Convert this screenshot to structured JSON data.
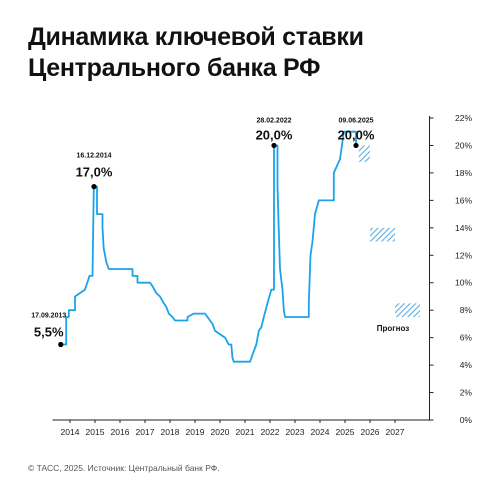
{
  "title_line1": "Динамика ключевой ставки",
  "title_line2": "Центрального банка РФ",
  "source": "© ТАСС, 2025. Источник: Центральный банк РФ.",
  "forecast_label": "Прогноз",
  "annotations": [
    {
      "date_label": "17.09.2013",
      "value_label": "5,5%",
      "x": 2013.71,
      "y": 5.5
    },
    {
      "date_label": "16.12.2014",
      "value_label": "17,0%",
      "x": 2014.96,
      "y": 17.0
    },
    {
      "date_label": "28.02.2022",
      "value_label": "20,0%",
      "x": 2022.16,
      "y": 20.0
    },
    {
      "date_label": "09.06.2025",
      "value_label": "20,0%",
      "x": 2025.44,
      "y": 20.0
    }
  ],
  "colors": {
    "line": "#1aa3e8",
    "forecast": "#5aaee0",
    "text": "#111111",
    "axis": "#222222"
  },
  "chart_data": {
    "type": "line",
    "title": "Динамика ключевой ставки Центрального банка РФ",
    "xlabel": "",
    "ylabel": "",
    "xlim": [
      2013.3,
      2028.3
    ],
    "ylim": [
      0,
      22
    ],
    "x_ticks": [
      "2014",
      "2015",
      "2016",
      "2017",
      "2018",
      "2019",
      "2020",
      "2021",
      "2022",
      "2023",
      "2024",
      "2025",
      "2026",
      "2027"
    ],
    "y_ticks": [
      "0%",
      "2%",
      "4%",
      "6%",
      "8%",
      "10%",
      "12%",
      "14%",
      "16%",
      "18%",
      "20%",
      "22%"
    ],
    "y_axis_position": "right",
    "grid": false,
    "series": [
      {
        "values": [
          [
            2013.71,
            5.5
          ],
          [
            2013.85,
            5.5
          ],
          [
            2013.85,
            7.5
          ],
          [
            2013.95,
            7.5
          ],
          [
            2013.95,
            8.0
          ],
          [
            2014.2,
            8.0
          ],
          [
            2014.2,
            9.0
          ],
          [
            2014.6,
            9.5
          ],
          [
            2014.78,
            10.5
          ],
          [
            2014.9,
            10.5
          ],
          [
            2014.95,
            17.0
          ],
          [
            2015.08,
            17.0
          ],
          [
            2015.08,
            15.0
          ],
          [
            2015.3,
            15.0
          ],
          [
            2015.3,
            14.0
          ],
          [
            2015.35,
            12.5
          ],
          [
            2015.45,
            11.5
          ],
          [
            2015.55,
            11.0
          ],
          [
            2016.5,
            11.0
          ],
          [
            2016.5,
            10.5
          ],
          [
            2016.7,
            10.5
          ],
          [
            2016.7,
            10.0
          ],
          [
            2017.2,
            10.0
          ],
          [
            2017.3,
            9.75
          ],
          [
            2017.45,
            9.25
          ],
          [
            2017.6,
            9.0
          ],
          [
            2017.75,
            8.5
          ],
          [
            2017.85,
            8.25
          ],
          [
            2017.95,
            7.75
          ],
          [
            2018.1,
            7.5
          ],
          [
            2018.2,
            7.25
          ],
          [
            2018.7,
            7.25
          ],
          [
            2018.7,
            7.5
          ],
          [
            2018.95,
            7.75
          ],
          [
            2019.4,
            7.75
          ],
          [
            2019.5,
            7.5
          ],
          [
            2019.6,
            7.25
          ],
          [
            2019.7,
            7.0
          ],
          [
            2019.8,
            6.5
          ],
          [
            2020.0,
            6.25
          ],
          [
            2020.2,
            6.0
          ],
          [
            2020.35,
            5.5
          ],
          [
            2020.45,
            5.5
          ],
          [
            2020.5,
            4.5
          ],
          [
            2020.55,
            4.25
          ],
          [
            2021.2,
            4.25
          ],
          [
            2021.25,
            4.5
          ],
          [
            2021.35,
            5.0
          ],
          [
            2021.45,
            5.5
          ],
          [
            2021.55,
            6.5
          ],
          [
            2021.65,
            6.75
          ],
          [
            2021.75,
            7.5
          ],
          [
            2021.9,
            8.5
          ],
          [
            2022.05,
            9.5
          ],
          [
            2022.16,
            9.5
          ],
          [
            2022.16,
            20.0
          ],
          [
            2022.3,
            20.0
          ],
          [
            2022.3,
            17.0
          ],
          [
            2022.35,
            14.0
          ],
          [
            2022.4,
            11.0
          ],
          [
            2022.5,
            9.5
          ],
          [
            2022.55,
            8.0
          ],
          [
            2022.6,
            7.5
          ],
          [
            2023.55,
            7.5
          ],
          [
            2023.55,
            8.5
          ],
          [
            2023.62,
            12.0
          ],
          [
            2023.7,
            13.0
          ],
          [
            2023.8,
            15.0
          ],
          [
            2023.95,
            16.0
          ],
          [
            2024.55,
            16.0
          ],
          [
            2024.55,
            18.0
          ],
          [
            2024.8,
            19.0
          ],
          [
            2024.95,
            21.0
          ],
          [
            2025.44,
            21.0
          ],
          [
            2025.44,
            20.0
          ]
        ]
      }
    ],
    "forecast_ranges": [
      {
        "x": [
          2025.55,
          2026.0
        ],
        "y": [
          18.8,
          20.0
        ]
      },
      {
        "x": [
          2026.0,
          2027.0
        ],
        "y": [
          13.0,
          14.0
        ]
      },
      {
        "x": [
          2027.0,
          2028.0
        ],
        "y": [
          7.5,
          8.5
        ]
      }
    ]
  }
}
